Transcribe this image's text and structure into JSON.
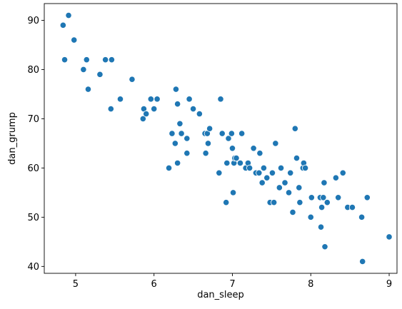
{
  "chart_data": {
    "type": "scatter",
    "xlabel": "dan_sleep",
    "ylabel": "dan_grump",
    "xlim": [
      4.6,
      9.1
    ],
    "ylim": [
      38.6,
      93.4
    ],
    "xticks": [
      5,
      6,
      7,
      8,
      9
    ],
    "yticks": [
      40,
      50,
      60,
      70,
      80,
      90
    ],
    "grid": false,
    "marker_color": "#1f77b4",
    "points": [
      {
        "x": 4.84,
        "y": 89
      },
      {
        "x": 4.86,
        "y": 82
      },
      {
        "x": 4.91,
        "y": 91
      },
      {
        "x": 4.98,
        "y": 86
      },
      {
        "x": 5.1,
        "y": 80
      },
      {
        "x": 5.14,
        "y": 82
      },
      {
        "x": 5.16,
        "y": 76
      },
      {
        "x": 5.31,
        "y": 79
      },
      {
        "x": 5.38,
        "y": 82
      },
      {
        "x": 5.45,
        "y": 72
      },
      {
        "x": 5.46,
        "y": 82
      },
      {
        "x": 5.57,
        "y": 74
      },
      {
        "x": 5.72,
        "y": 78
      },
      {
        "x": 5.86,
        "y": 70
      },
      {
        "x": 5.87,
        "y": 72
      },
      {
        "x": 5.9,
        "y": 71
      },
      {
        "x": 5.96,
        "y": 74
      },
      {
        "x": 6.0,
        "y": 72
      },
      {
        "x": 6.04,
        "y": 74
      },
      {
        "x": 6.19,
        "y": 60
      },
      {
        "x": 6.23,
        "y": 67
      },
      {
        "x": 6.27,
        "y": 65
      },
      {
        "x": 6.28,
        "y": 76
      },
      {
        "x": 6.3,
        "y": 73
      },
      {
        "x": 6.3,
        "y": 61
      },
      {
        "x": 6.33,
        "y": 69
      },
      {
        "x": 6.35,
        "y": 67
      },
      {
        "x": 6.42,
        "y": 66
      },
      {
        "x": 6.42,
        "y": 63
      },
      {
        "x": 6.45,
        "y": 74
      },
      {
        "x": 6.5,
        "y": 72
      },
      {
        "x": 6.58,
        "y": 71
      },
      {
        "x": 6.65,
        "y": 67
      },
      {
        "x": 6.66,
        "y": 63
      },
      {
        "x": 6.68,
        "y": 67
      },
      {
        "x": 6.69,
        "y": 65
      },
      {
        "x": 6.71,
        "y": 68
      },
      {
        "x": 6.83,
        "y": 59
      },
      {
        "x": 6.85,
        "y": 74
      },
      {
        "x": 6.87,
        "y": 67
      },
      {
        "x": 6.92,
        "y": 53
      },
      {
        "x": 6.93,
        "y": 61
      },
      {
        "x": 6.95,
        "y": 66
      },
      {
        "x": 6.99,
        "y": 67
      },
      {
        "x": 7.0,
        "y": 64
      },
      {
        "x": 7.01,
        "y": 55
      },
      {
        "x": 7.02,
        "y": 61
      },
      {
        "x": 7.03,
        "y": 62
      },
      {
        "x": 7.05,
        "y": 62
      },
      {
        "x": 7.1,
        "y": 61
      },
      {
        "x": 7.12,
        "y": 67
      },
      {
        "x": 7.17,
        "y": 60
      },
      {
        "x": 7.2,
        "y": 61
      },
      {
        "x": 7.22,
        "y": 60
      },
      {
        "x": 7.27,
        "y": 64
      },
      {
        "x": 7.3,
        "y": 59
      },
      {
        "x": 7.34,
        "y": 59
      },
      {
        "x": 7.35,
        "y": 63
      },
      {
        "x": 7.38,
        "y": 57
      },
      {
        "x": 7.4,
        "y": 60
      },
      {
        "x": 7.44,
        "y": 58
      },
      {
        "x": 7.48,
        "y": 53
      },
      {
        "x": 7.51,
        "y": 59
      },
      {
        "x": 7.53,
        "y": 53
      },
      {
        "x": 7.55,
        "y": 65
      },
      {
        "x": 7.6,
        "y": 56
      },
      {
        "x": 7.62,
        "y": 60
      },
      {
        "x": 7.67,
        "y": 57
      },
      {
        "x": 7.72,
        "y": 55
      },
      {
        "x": 7.74,
        "y": 59
      },
      {
        "x": 7.77,
        "y": 51
      },
      {
        "x": 7.8,
        "y": 68
      },
      {
        "x": 7.82,
        "y": 62
      },
      {
        "x": 7.85,
        "y": 56
      },
      {
        "x": 7.86,
        "y": 53
      },
      {
        "x": 7.9,
        "y": 60
      },
      {
        "x": 7.91,
        "y": 61
      },
      {
        "x": 7.93,
        "y": 60
      },
      {
        "x": 8.0,
        "y": 50
      },
      {
        "x": 8.01,
        "y": 54
      },
      {
        "x": 8.12,
        "y": 54
      },
      {
        "x": 8.13,
        "y": 48
      },
      {
        "x": 8.14,
        "y": 52
      },
      {
        "x": 8.16,
        "y": 54
      },
      {
        "x": 8.17,
        "y": 57
      },
      {
        "x": 8.18,
        "y": 44
      },
      {
        "x": 8.21,
        "y": 53
      },
      {
        "x": 8.32,
        "y": 58
      },
      {
        "x": 8.35,
        "y": 54
      },
      {
        "x": 8.41,
        "y": 59
      },
      {
        "x": 8.47,
        "y": 52
      },
      {
        "x": 8.53,
        "y": 52
      },
      {
        "x": 8.65,
        "y": 50
      },
      {
        "x": 8.66,
        "y": 41
      },
      {
        "x": 8.72,
        "y": 54
      },
      {
        "x": 9.0,
        "y": 46
      }
    ]
  }
}
